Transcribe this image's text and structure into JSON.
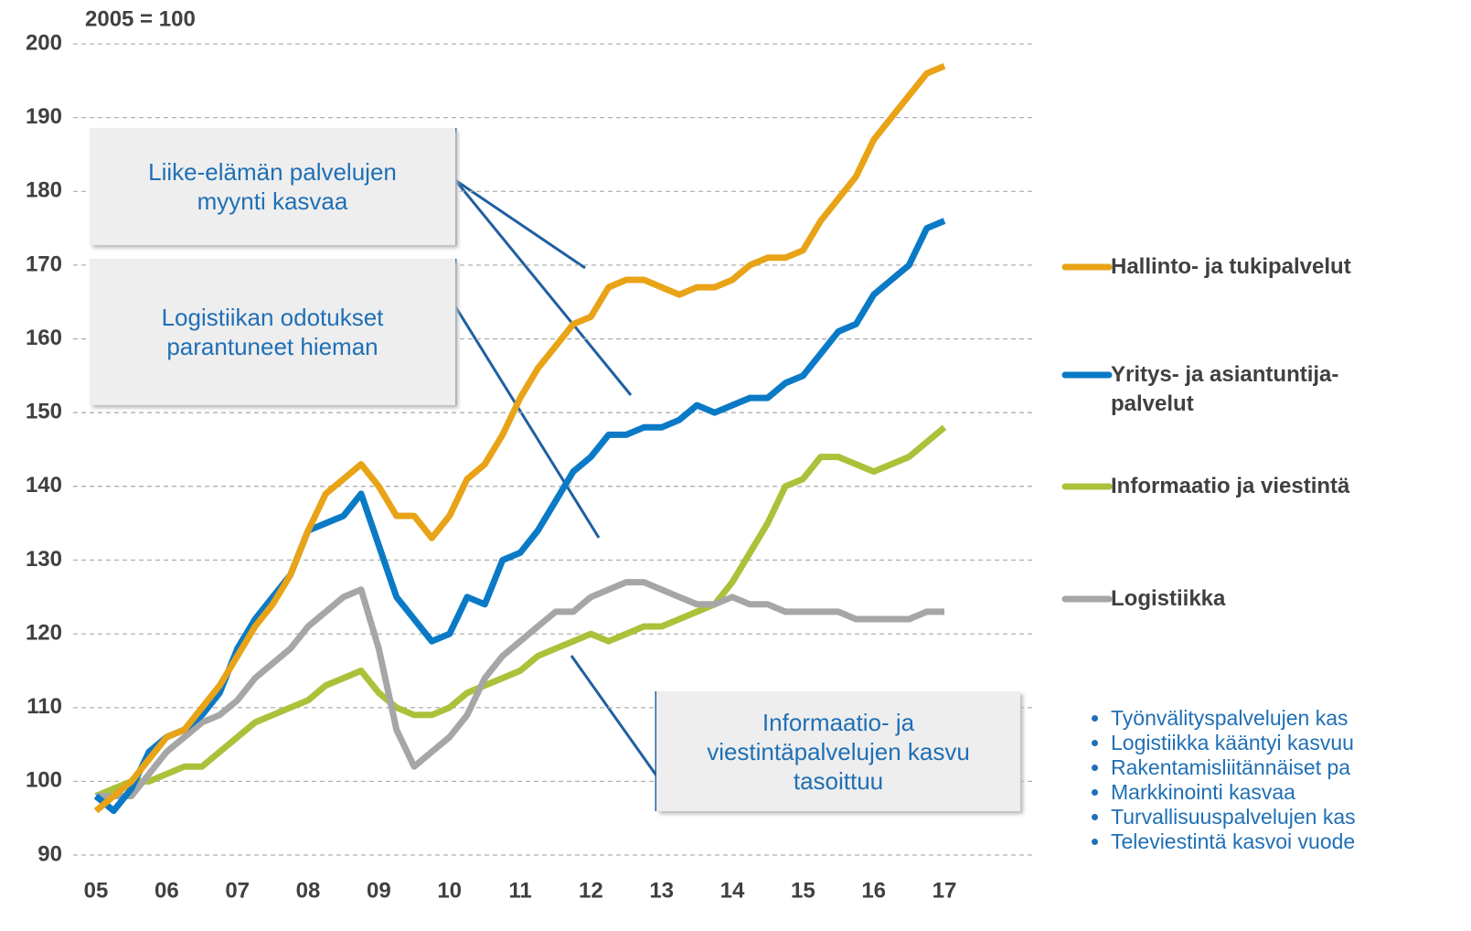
{
  "chart_data": {
    "type": "line",
    "subtitle": "2005 = 100",
    "x": [
      2005,
      2005.25,
      2005.5,
      2005.75,
      2006,
      2006.25,
      2006.5,
      2006.75,
      2007,
      2007.25,
      2007.5,
      2007.75,
      2008,
      2008.25,
      2008.5,
      2008.75,
      2009,
      2009.25,
      2009.5,
      2009.75,
      2010,
      2010.25,
      2010.5,
      2010.75,
      2011,
      2011.25,
      2011.5,
      2011.75,
      2012,
      2012.25,
      2012.5,
      2012.75,
      2013,
      2013.25,
      2013.5,
      2013.75,
      2014,
      2014.25,
      2014.5,
      2014.75,
      2015,
      2015.25,
      2015.5,
      2015.75,
      2016,
      2016.25,
      2016.5,
      2016.75,
      2017
    ],
    "series": [
      {
        "name": "Hallinto- ja tukipalvelut",
        "color": "#e8a317",
        "values": [
          96,
          98,
          100,
          103,
          106,
          107,
          110,
          113,
          117,
          121,
          124,
          128,
          134,
          139,
          141,
          143,
          140,
          136,
          136,
          133,
          136,
          141,
          143,
          147,
          152,
          156,
          159,
          162,
          163,
          167,
          168,
          168,
          167,
          166,
          167,
          167,
          168,
          170,
          171,
          171,
          172,
          176,
          179,
          182,
          187,
          190,
          193,
          196,
          197
        ]
      },
      {
        "name": "Yritys- ja asiantuntija-\npalvelut",
        "color": "#0a7ac6",
        "values": [
          98,
          96,
          99,
          104,
          106,
          107,
          109,
          112,
          118,
          122,
          125,
          128,
          134,
          135,
          136,
          139,
          132,
          125,
          122,
          119,
          120,
          125,
          124,
          130,
          131,
          134,
          138,
          142,
          144,
          147,
          147,
          148,
          148,
          149,
          151,
          150,
          151,
          152,
          152,
          154,
          155,
          158,
          161,
          162,
          166,
          168,
          170,
          175,
          176
        ]
      },
      {
        "name": "Informaatio ja viestintä",
        "color": "#a9c23a",
        "values": [
          98,
          99,
          100,
          100,
          101,
          102,
          102,
          104,
          106,
          108,
          109,
          110,
          111,
          113,
          114,
          115,
          112,
          110,
          109,
          109,
          110,
          112,
          113,
          114,
          115,
          117,
          118,
          119,
          120,
          119,
          120,
          121,
          121,
          122,
          123,
          124,
          127,
          131,
          135,
          140,
          141,
          144,
          144,
          143,
          142,
          143,
          144,
          146,
          148
        ]
      },
      {
        "name": "Logistiikka",
        "color": "#a6a6a6",
        "values": [
          98,
          98,
          98,
          101,
          104,
          106,
          108,
          109,
          111,
          114,
          116,
          118,
          121,
          123,
          125,
          126,
          118,
          107,
          102,
          104,
          106,
          109,
          114,
          117,
          119,
          121,
          123,
          123,
          125,
          126,
          127,
          127,
          126,
          125,
          124,
          124,
          125,
          124,
          124,
          123,
          123,
          123,
          123,
          122,
          122,
          122,
          122,
          123,
          123
        ]
      }
    ],
    "xlim": [
      2005,
      2017
    ],
    "xticks": [
      {
        "value": 2005,
        "label": "05"
      },
      {
        "value": 2006,
        "label": "06"
      },
      {
        "value": 2007,
        "label": "07"
      },
      {
        "value": 2008,
        "label": "08"
      },
      {
        "value": 2009,
        "label": "09"
      },
      {
        "value": 2010,
        "label": "10"
      },
      {
        "value": 2011,
        "label": "11"
      },
      {
        "value": 2012,
        "label": "12"
      },
      {
        "value": 2013,
        "label": "13"
      },
      {
        "value": 2014,
        "label": "14"
      },
      {
        "value": 2015,
        "label": "15"
      },
      {
        "value": 2016,
        "label": "16"
      },
      {
        "value": 2017,
        "label": "17"
      }
    ],
    "ylim": [
      90,
      200
    ],
    "yticks": [
      90,
      100,
      110,
      120,
      130,
      140,
      150,
      160,
      170,
      180,
      190,
      200
    ],
    "grid": true,
    "annotations": [
      "Liike-elämän palvelujen\nmyynti kasvaa",
      "Logistiikan odotukset\nparantuneet hieman",
      "Informaatio- ja\nviestintäpalvelujen kasvu\ntasoittuu"
    ],
    "notes": [
      "Työnvälityspalvelujen kas",
      "Logistiikka kääntyi kasvuu",
      "Rakentamisliitännäiset pa",
      "Markkinointi kasvaa",
      "Turvallisuuspalvelujen kas",
      "Televiestintä kasvoi vuode"
    ]
  }
}
